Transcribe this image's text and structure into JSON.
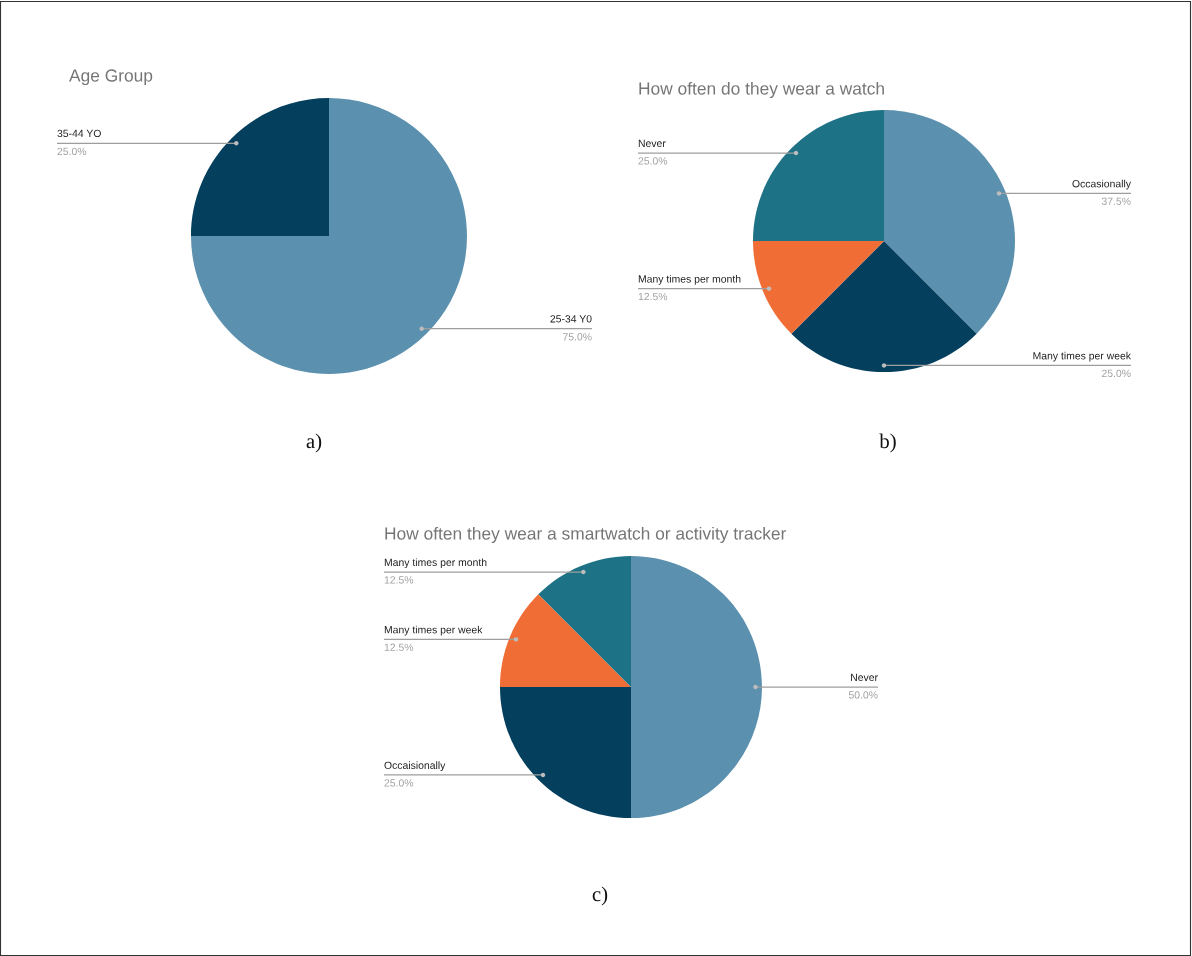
{
  "chart_data": [
    {
      "type": "pie",
      "title": "Age Group",
      "categories": [
        "25-34 Y0",
        "35-44 YO"
      ],
      "values": [
        75,
        25
      ],
      "colors": [
        "#5b90ae",
        "#04405e"
      ],
      "value_labels": [
        "75.0%",
        "25.0%"
      ],
      "annotations": [
        "a)"
      ]
    },
    {
      "type": "pie",
      "title": "How often do they wear a watch",
      "categories": [
        "Occasionally",
        "Many times per week",
        "Many times per month",
        "Never"
      ],
      "values": [
        37.5,
        25,
        12.5,
        25
      ],
      "colors": [
        "#5b90ae",
        "#04405e",
        "#f06e35",
        "#1e7285"
      ],
      "value_labels": [
        "37.5%",
        "25.0%",
        "12.5%",
        "25.0%"
      ],
      "annotations": [
        "b)"
      ]
    },
    {
      "type": "pie",
      "title": "How often they wear a smartwatch or activity tracker",
      "categories": [
        "Never",
        "Occaisionally",
        "Many times per week",
        "Many times per month"
      ],
      "values": [
        50,
        25,
        12.5,
        12.5
      ],
      "colors": [
        "#5b90ae",
        "#04405e",
        "#f06e35",
        "#1e7285"
      ],
      "value_labels": [
        "50.0%",
        "25.0%",
        "12.5%",
        "12.5%"
      ],
      "annotations": [
        "c)"
      ]
    }
  ]
}
